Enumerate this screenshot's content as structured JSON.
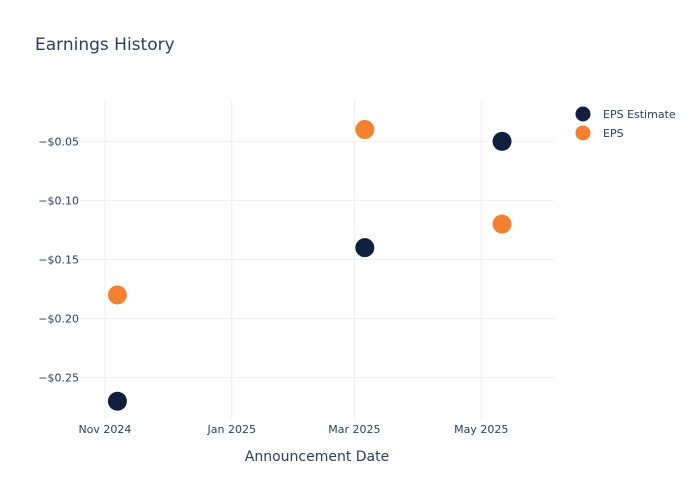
{
  "chart_data": {
    "type": "scatter",
    "title": "Earnings History",
    "xlabel": "Announcement Date",
    "ylabel": "",
    "x_ticks": [
      "Nov 2024",
      "Jan 2025",
      "Mar 2025",
      "May 2025"
    ],
    "y_ticks": [
      "−$0.05",
      "−$0.10",
      "−$0.15",
      "−$0.20",
      "−$0.25"
    ],
    "y_tick_values": [
      -0.05,
      -0.1,
      -0.15,
      -0.2,
      -0.25
    ],
    "ylim": [
      -0.285,
      -0.015
    ],
    "xlim": [
      "2024-10-20",
      "2025-06-05"
    ],
    "grid": true,
    "legend_position": "top-right",
    "series": [
      {
        "name": "EPS Estimate",
        "color": "#0f1f3d",
        "points": [
          {
            "x": "2024-11-07",
            "y": -0.27
          },
          {
            "x": "2025-03-06",
            "y": -0.14
          },
          {
            "x": "2025-05-11",
            "y": -0.05
          }
        ]
      },
      {
        "name": "EPS",
        "color": "#f48132",
        "points": [
          {
            "x": "2024-11-07",
            "y": -0.18
          },
          {
            "x": "2025-03-06",
            "y": -0.04
          },
          {
            "x": "2025-05-11",
            "y": -0.12
          }
        ]
      }
    ]
  }
}
